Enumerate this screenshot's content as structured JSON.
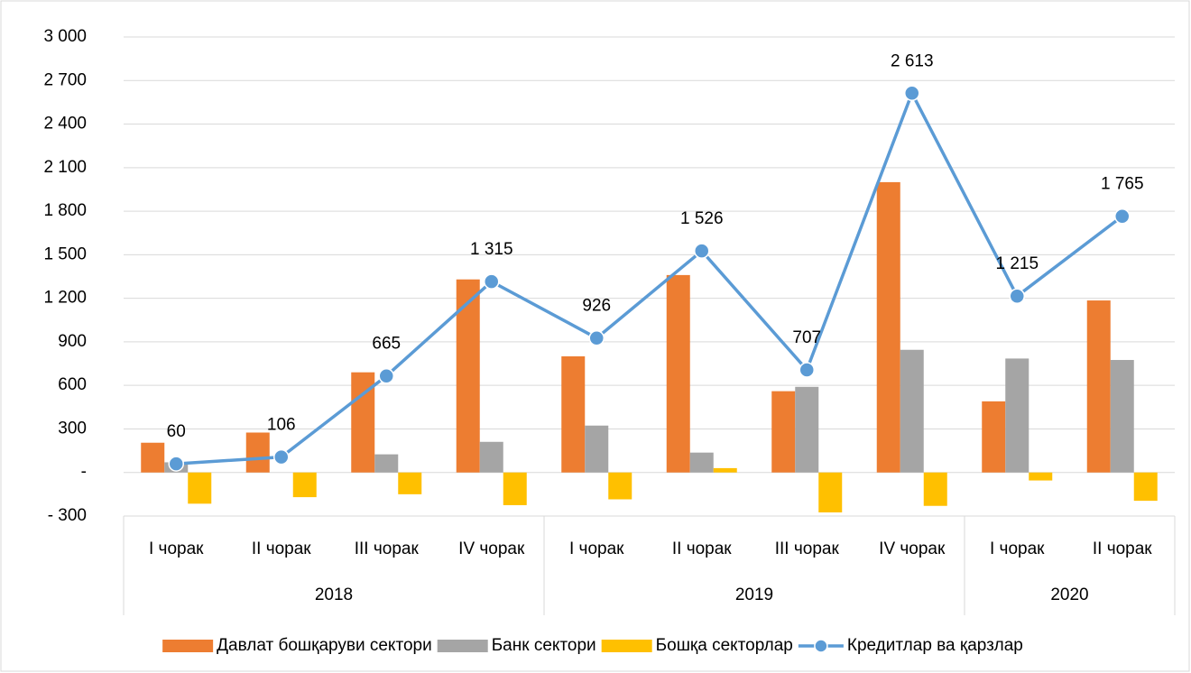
{
  "chart_data": {
    "type": "combo",
    "groups": [
      {
        "name": "2018",
        "categories": [
          "I чорак",
          "II чорак",
          "III чорак",
          "IV чорак"
        ]
      },
      {
        "name": "2019",
        "categories": [
          "I чорак",
          "II чорак",
          "III чорак",
          "IV чорак"
        ]
      },
      {
        "name": "2020",
        "categories": [
          "I чорак",
          "II чорак"
        ]
      }
    ],
    "series": [
      {
        "name": "Давлат бошқаруви сектори",
        "type": "bar",
        "color": "#ed7d31",
        "values": [
          205,
          275,
          690,
          1330,
          800,
          1360,
          560,
          2000,
          490,
          1185
        ]
      },
      {
        "name": "Банк сектори",
        "type": "bar",
        "color": "#a5a5a5",
        "values": [
          70,
          0,
          125,
          211,
          323,
          137,
          590,
          845,
          785,
          775
        ]
      },
      {
        "name": "Бошқа секторлар",
        "type": "bar",
        "color": "#ffc000",
        "values": [
          -215,
          -170,
          -150,
          -225,
          -185,
          30,
          -275,
          -230,
          -55,
          -195
        ]
      },
      {
        "name": "Кредитлар ва қарзлар",
        "type": "line",
        "color": "#5b9bd5",
        "values": [
          60,
          106,
          665,
          1315,
          926,
          1526,
          707,
          2613,
          1215,
          1765
        ],
        "value_labels": [
          "60",
          "106",
          "665",
          "1 315",
          "926",
          "1 526",
          "707",
          "2 613",
          "1 215",
          "1 765"
        ]
      }
    ],
    "ylim": [
      -300,
      3000
    ],
    "yticks": [
      {
        "value": -300,
        "label": "- 300"
      },
      {
        "value": 0,
        "label": "-"
      },
      300,
      600,
      900,
      {
        "value": 1200,
        "label": "1 200"
      },
      {
        "value": 1500,
        "label": "1 500"
      },
      {
        "value": 1800,
        "label": "1 800"
      },
      {
        "value": 2100,
        "label": "2 100"
      },
      {
        "value": 2400,
        "label": "2 400"
      },
      {
        "value": 2700,
        "label": "2 700"
      },
      {
        "value": 3000,
        "label": "3 000"
      }
    ],
    "grid": true,
    "legend": "bottom"
  }
}
